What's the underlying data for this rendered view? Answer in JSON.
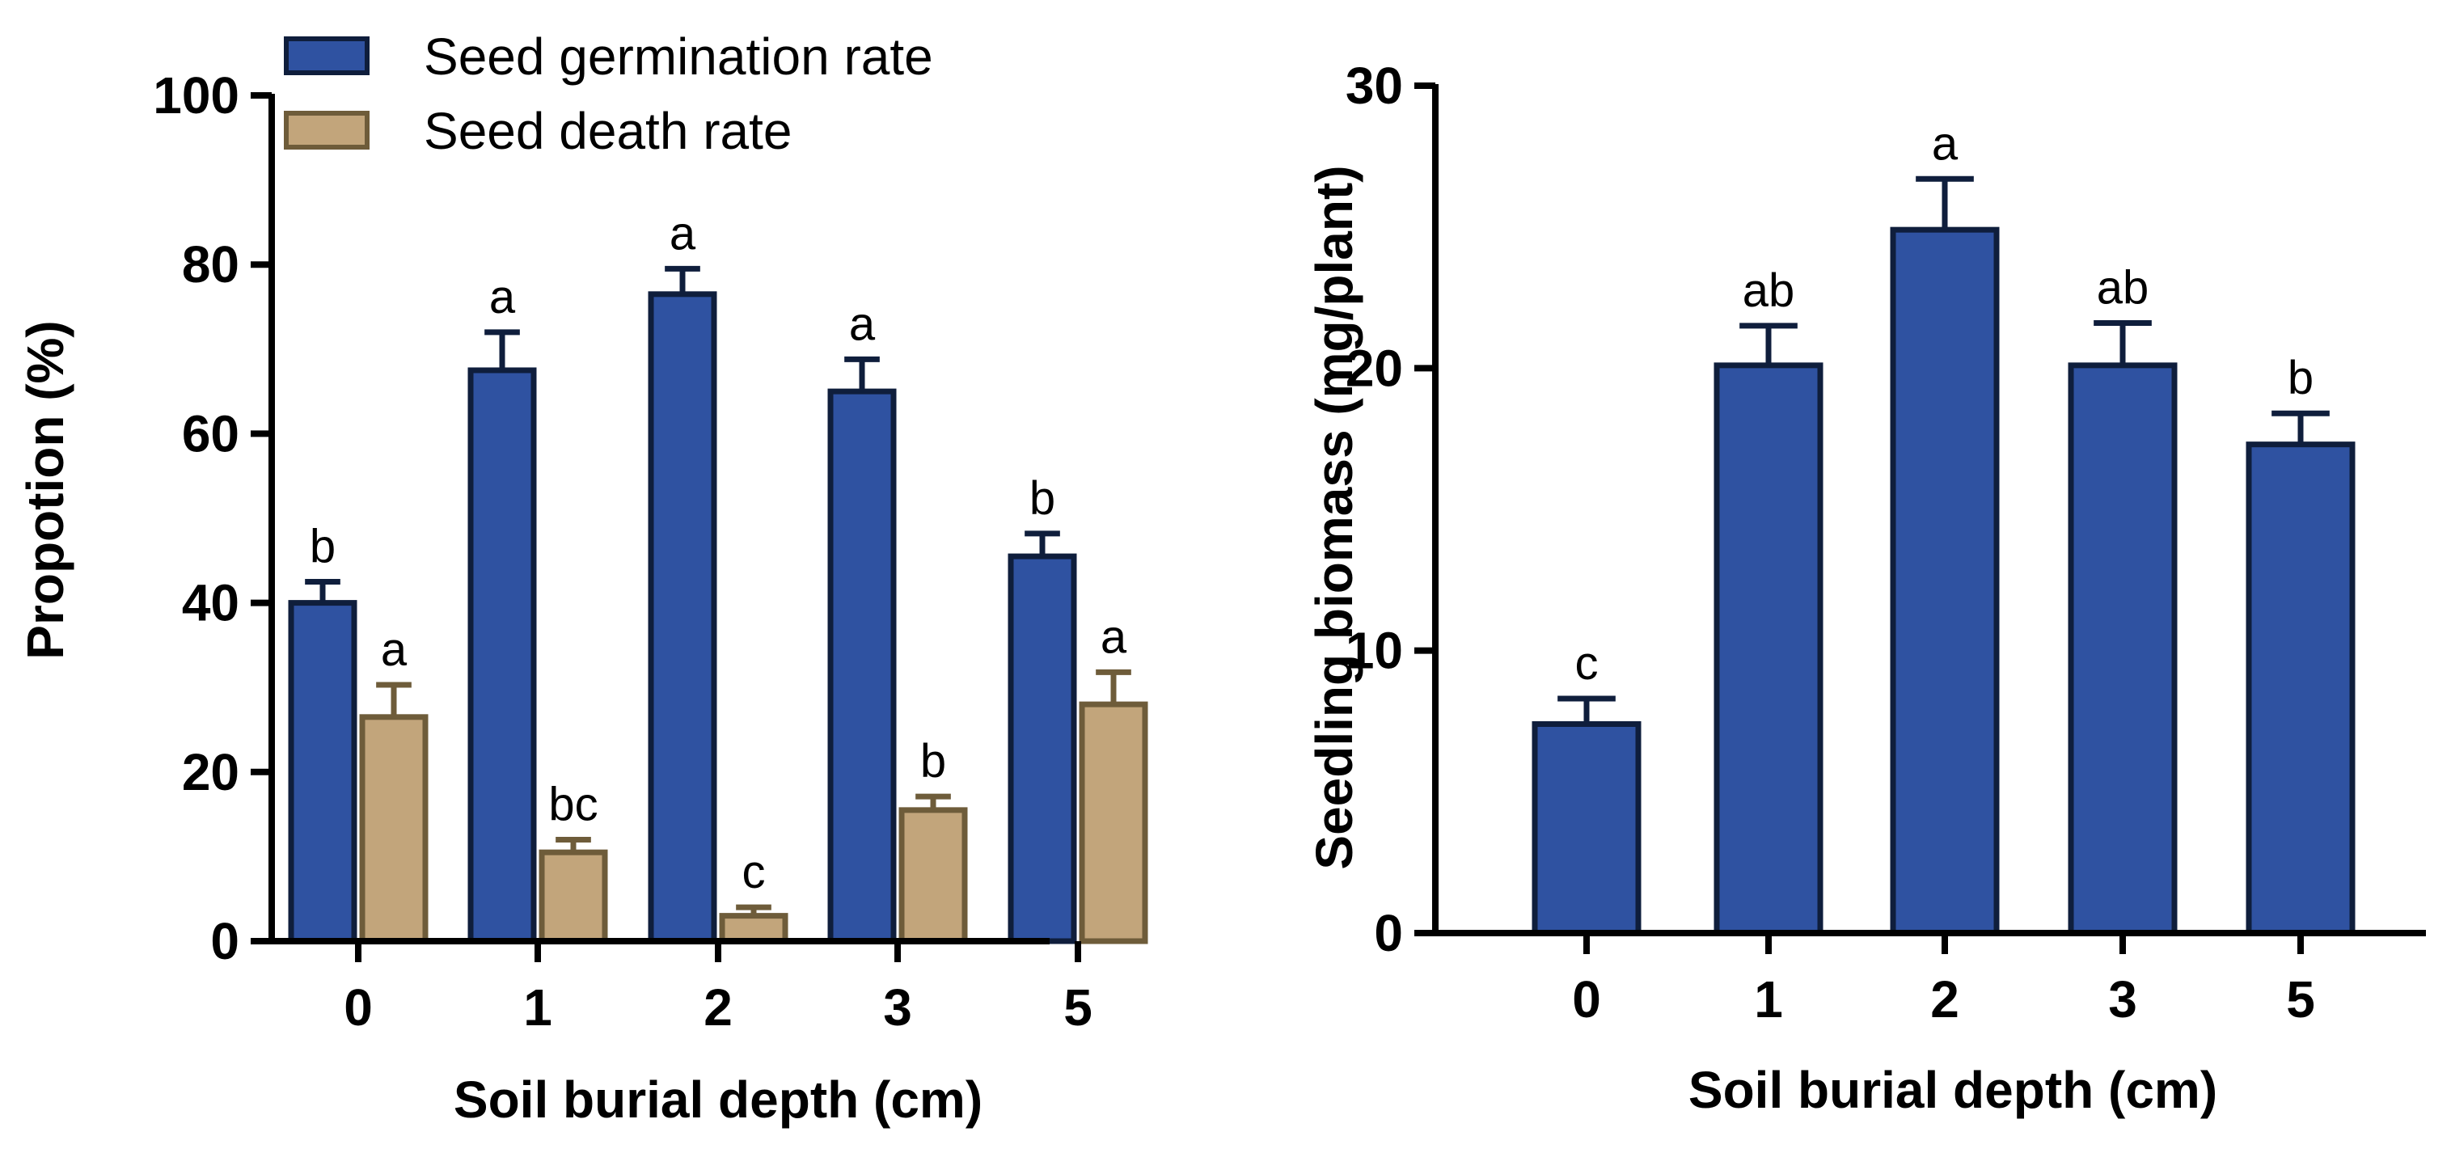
{
  "chart_data": [
    {
      "type": "bar",
      "title": "",
      "xlabel": "Soil burial depth (cm)",
      "ylabel": "Propotion (%)",
      "categories": [
        "0",
        "1",
        "2",
        "3",
        "5"
      ],
      "ylim": [
        0,
        100
      ],
      "yticks": [
        "0",
        "20",
        "40",
        "60",
        "80",
        "100"
      ],
      "legend_position": "top-left",
      "series": [
        {
          "name": "Seed germination rate",
          "color": "#2f52a1",
          "edge": "#0f1e3c",
          "values": [
            40,
            67.5,
            76.5,
            65,
            45.5
          ],
          "errors": [
            2.5,
            4.5,
            3,
            3.8,
            2.7
          ],
          "letters": [
            "b",
            "a",
            "a",
            "a",
            "b"
          ]
        },
        {
          "name": "Seed death rate",
          "color": "#c2a57b",
          "edge": "#6e5c3a",
          "values": [
            26.5,
            10.5,
            3,
            15.5,
            28
          ],
          "errors": [
            3.8,
            1.5,
            1,
            1.6,
            3.8
          ],
          "letters": [
            "a",
            "bc",
            "c",
            "b",
            "a"
          ]
        }
      ]
    },
    {
      "type": "bar",
      "title": "",
      "xlabel": "Soil burial depth (cm)",
      "ylabel": "Seedling biomass (mg/plant)",
      "categories": [
        "0",
        "1",
        "2",
        "3",
        "5"
      ],
      "ylim": [
        0,
        30
      ],
      "yticks": [
        "0",
        "10",
        "20",
        "30"
      ],
      "series": [
        {
          "name": "Seedling biomass",
          "color": "#2f52a1",
          "edge": "#0f1e3c",
          "values": [
            7.4,
            20.1,
            24.9,
            20.1,
            17.3
          ],
          "errors": [
            0.9,
            1.4,
            1.8,
            1.5,
            1.1
          ],
          "letters": [
            "c",
            "ab",
            "a",
            "ab",
            "b"
          ]
        }
      ]
    }
  ]
}
